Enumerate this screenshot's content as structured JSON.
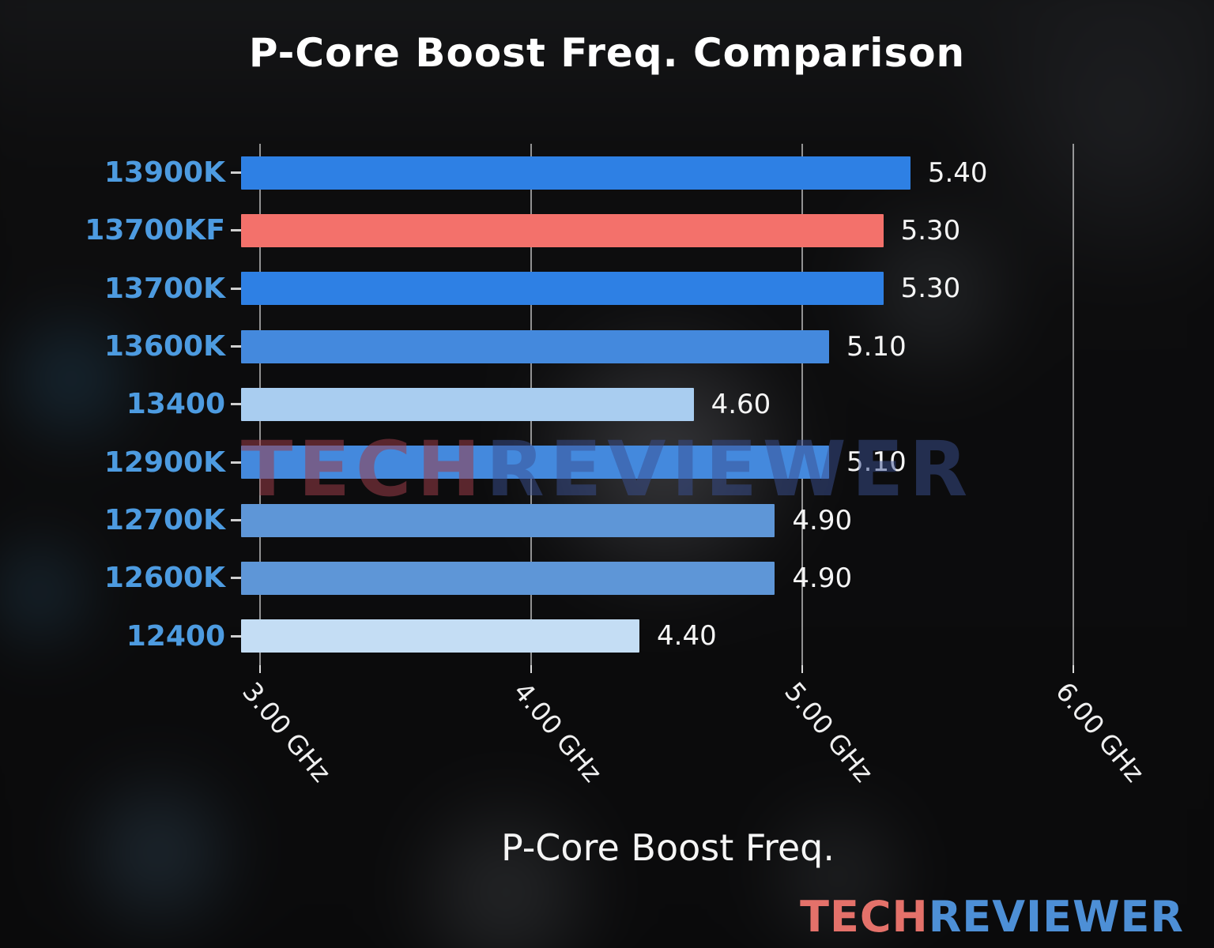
{
  "page": {
    "watermark": {
      "part1": "TECH",
      "part2": "REVIEWER"
    },
    "logo": {
      "part1": "TECH",
      "part2": "REVIEWER"
    }
  },
  "chart_data": {
    "type": "bar",
    "orientation": "horizontal",
    "title": "P-Core Boost Freq. Comparison",
    "xlabel": "P-Core Boost Freq.",
    "categories": [
      "13900K",
      "13700KF",
      "13700K",
      "13600K",
      "13400",
      "12900K",
      "12700K",
      "12600K",
      "12400"
    ],
    "values": [
      5.4,
      5.3,
      5.3,
      5.1,
      4.6,
      5.1,
      4.9,
      4.9,
      4.4
    ],
    "value_labels": [
      "5.40",
      "5.30",
      "5.30",
      "5.10",
      "4.60",
      "5.10",
      "4.90",
      "4.90",
      "4.40"
    ],
    "bar_colors": [
      "#2e80e4",
      "#f3716b",
      "#2e80e4",
      "#4489dd",
      "#a9cdf0",
      "#4489dd",
      "#5e96d7",
      "#5e96d7",
      "#c4ddf4"
    ],
    "highlight_index": 1,
    "unit": "GHz",
    "xlim": [
      2.93,
      6.08
    ],
    "xticks": [
      3,
      4,
      5,
      6
    ],
    "xtick_labels": [
      "3.00 GHz",
      "4.00 GHz",
      "5.00 GHz",
      "6.00 GHz"
    ],
    "grid": true,
    "category_label_color": "#4d9be0",
    "value_label_color": "#f5f5f5",
    "legend": "none"
  }
}
